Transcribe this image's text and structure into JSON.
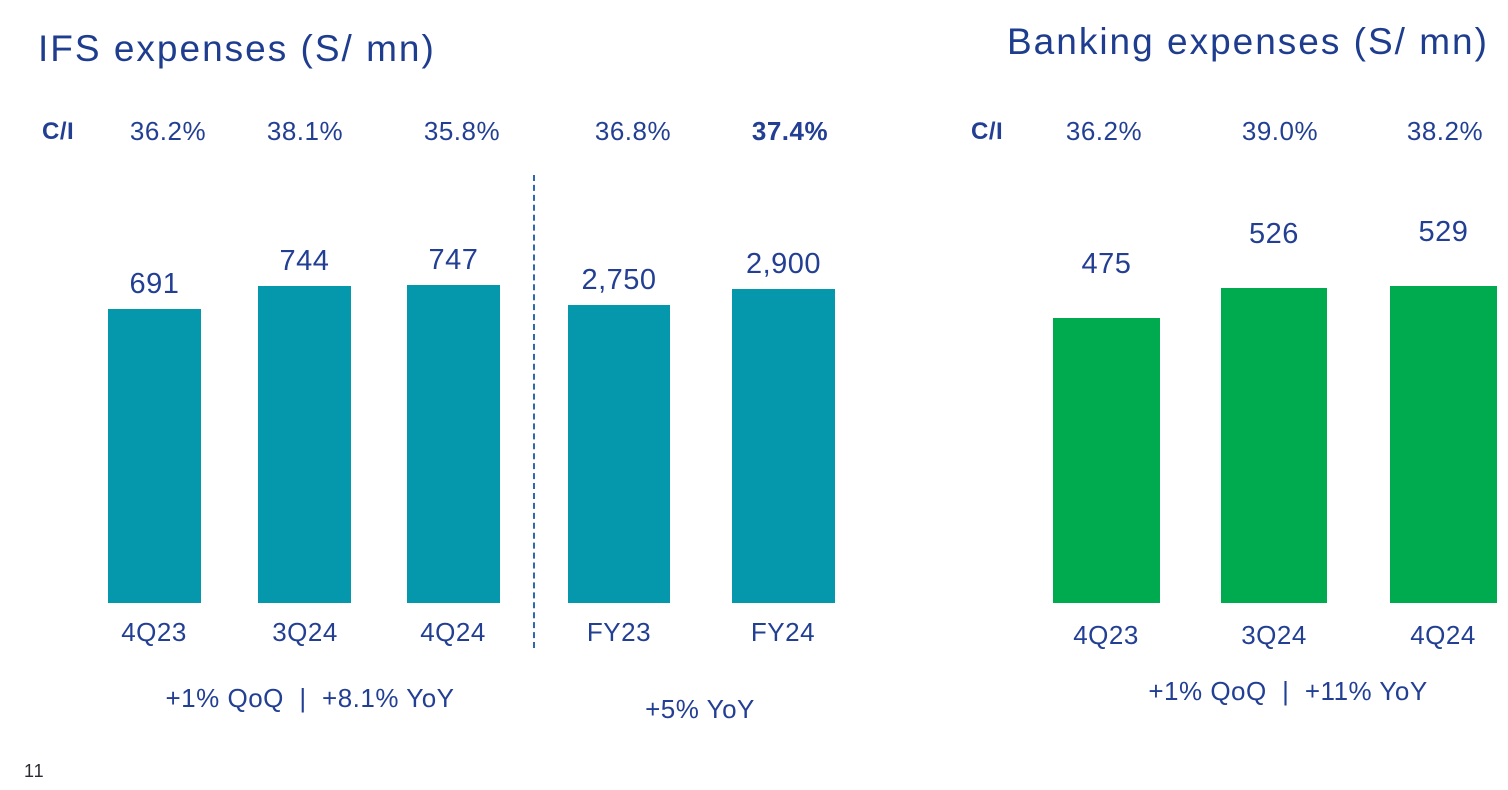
{
  "page_number": "11",
  "colors": {
    "navy_text": "#223F94",
    "title_navy": "#1F3D8F",
    "teal_bar": "#0598AD",
    "green_bar": "#00AB4F",
    "divider_blue": "#3068B0"
  },
  "chart_data": [
    {
      "type": "bar",
      "title": "IFS expenses (S/ mn)",
      "bar_color": "#0598AD",
      "ci_row": {
        "label": "C/I",
        "values": [
          "36.2%",
          "38.1%",
          "35.8%",
          "36.8%",
          "37.4%"
        ],
        "bold_value": "37.4%"
      },
      "groups": [
        {
          "categories": [
            "4Q23",
            "3Q24",
            "4Q24"
          ],
          "values": [
            691,
            744,
            747
          ],
          "value_labels": [
            "691",
            "744",
            "747"
          ],
          "footnote": "+1% QoQ  |  +8.1% YoY"
        },
        {
          "categories": [
            "FY23",
            "FY24"
          ],
          "values": [
            2750,
            2900
          ],
          "value_labels": [
            "2,750",
            "2,900"
          ],
          "footnote": "+5% YoY"
        }
      ],
      "layout_hints": {
        "divider": "dashed vertical line between quarterly and full-year groups",
        "grid": false,
        "legend": false
      }
    },
    {
      "type": "bar",
      "title": "Banking expenses (S/ mn)",
      "bar_color": "#00AB4F",
      "ci_row": {
        "label": "C/I",
        "values": [
          "36.2%",
          "39.0%",
          "38.2%"
        ]
      },
      "groups": [
        {
          "categories": [
            "4Q23",
            "3Q24",
            "4Q24"
          ],
          "values": [
            475,
            526,
            529
          ],
          "value_labels": [
            "475",
            "526",
            "529"
          ],
          "footnote": "+1% QoQ  |  +11% YoY"
        }
      ],
      "layout_hints": {
        "grid": false,
        "legend": false,
        "title_clipped_at_right_edge": true
      }
    }
  ]
}
